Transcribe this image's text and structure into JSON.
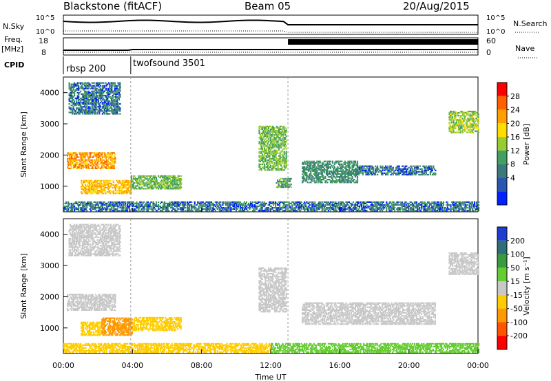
{
  "header": {
    "station": "Blackstone (fitACF)",
    "beam": "Beam 05",
    "date": "20/Aug/2015"
  },
  "panels": {
    "nsky_label": "N.Sky",
    "nsearch_label": "N.Search",
    "freq_label": "Freq.",
    "freq_unit": "[MHz]",
    "nave_label": "Nave",
    "cpid_label": "CPID",
    "nsky_ticks": [
      "10^5",
      "10^0"
    ],
    "freq_ticks": [
      "18",
      "8"
    ],
    "nave_ticks": [
      "60",
      "0"
    ],
    "cpid_modes": [
      {
        "name": "rbsp 200",
        "start": "00:00",
        "end": "03:50"
      },
      {
        "name": "twofsound 3501",
        "start": "03:50",
        "end": "24:00"
      }
    ]
  },
  "axes": {
    "ylabel": "Slant Range [km]",
    "xlabel": "Time UT",
    "x_ticks": [
      "00:00",
      "04:00",
      "08:00",
      "12:00",
      "16:00",
      "20:00",
      "00:00"
    ],
    "y_ticks": [
      "1000",
      "2000",
      "3000",
      "4000"
    ],
    "power_label": "Power [dB]",
    "velocity_label": "Velocity [m s⁻¹]"
  },
  "chart_data": [
    {
      "type": "heatmap",
      "title": "",
      "variable": "Power",
      "unit": "dB",
      "xlim_hours": [
        0,
        24
      ],
      "ylim_km": [
        180,
        4500
      ],
      "colorbar_ticks": [
        "28",
        "24",
        "20",
        "16",
        "12",
        "8",
        "4"
      ],
      "colorbar_values": [
        28,
        24,
        20,
        16,
        12,
        8,
        4
      ],
      "colorbar_colors": [
        "#ff0000",
        "#ff6000",
        "#ffa000",
        "#ffdd00",
        "#99cc33",
        "#44a060",
        "#3a7a7a",
        "#2a55b0",
        "#0022ff"
      ],
      "regions": [
        {
          "t0": 0.2,
          "t1": 3.0,
          "r0": 1550,
          "r1": 2050,
          "value": 22
        },
        {
          "t0": 1.0,
          "t1": 3.9,
          "r0": 750,
          "r1": 1200,
          "value": 20
        },
        {
          "t0": 0.3,
          "t1": 3.3,
          "r0": 3300,
          "r1": 4300,
          "value": 6
        },
        {
          "t0": 3.9,
          "t1": 6.8,
          "r0": 900,
          "r1": 1350,
          "value": 12
        },
        {
          "t0": 11.3,
          "t1": 12.9,
          "r0": 1500,
          "r1": 2900,
          "value": 12
        },
        {
          "t0": 12.3,
          "t1": 13.2,
          "r0": 950,
          "r1": 1250,
          "value": 10
        },
        {
          "t0": 13.8,
          "t1": 17.0,
          "r0": 1100,
          "r1": 1800,
          "value": 8
        },
        {
          "t0": 17.0,
          "t1": 21.5,
          "r0": 1350,
          "r1": 1650,
          "value": 6
        },
        {
          "t0": 22.3,
          "t1": 24.0,
          "r0": 2700,
          "r1": 3400,
          "value": 14
        },
        {
          "t0": 0.0,
          "t1": 24.0,
          "r0": 200,
          "r1": 480,
          "value": 6
        }
      ]
    },
    {
      "type": "heatmap",
      "title": "",
      "variable": "Velocity",
      "unit": "m s-1",
      "xlim_hours": [
        0,
        24
      ],
      "ylim_km": [
        180,
        4500
      ],
      "colorbar_ticks": [
        "200",
        "100",
        "50",
        "15",
        "-15",
        "-50",
        "-100",
        "-200"
      ],
      "colorbar_values": [
        200,
        100,
        50,
        15,
        -15,
        -50,
        -100,
        -200
      ],
      "colorbar_colors": [
        "#1e3cd0",
        "#2d6e78",
        "#3a9a40",
        "#66cc33",
        "#c8c8c8",
        "#ffcc00",
        "#ff9900",
        "#ff5500",
        "#ff0000"
      ],
      "regions": [
        {
          "t0": 0.2,
          "t1": 3.0,
          "r0": 1550,
          "r1": 2050,
          "value": 0
        },
        {
          "t0": 1.0,
          "t1": 2.2,
          "r0": 750,
          "r1": 1200,
          "value": -20
        },
        {
          "t0": 2.2,
          "t1": 4.0,
          "r0": 750,
          "r1": 1300,
          "value": -80
        },
        {
          "t0": 0.3,
          "t1": 3.3,
          "r0": 3300,
          "r1": 4300,
          "value": 0
        },
        {
          "t0": 4.0,
          "t1": 6.8,
          "r0": 900,
          "r1": 1350,
          "value": -20
        },
        {
          "t0": 11.3,
          "t1": 12.9,
          "r0": 1500,
          "r1": 2900,
          "value": 0
        },
        {
          "t0": 13.8,
          "t1": 21.5,
          "r0": 1100,
          "r1": 1800,
          "value": 0
        },
        {
          "t0": 22.3,
          "t1": 24.0,
          "r0": 2700,
          "r1": 3400,
          "value": 0
        },
        {
          "t0": 0.0,
          "t1": 12.0,
          "r0": 200,
          "r1": 480,
          "value": -20
        },
        {
          "t0": 12.0,
          "t1": 24.0,
          "r0": 200,
          "r1": 480,
          "value": 30
        }
      ]
    }
  ]
}
